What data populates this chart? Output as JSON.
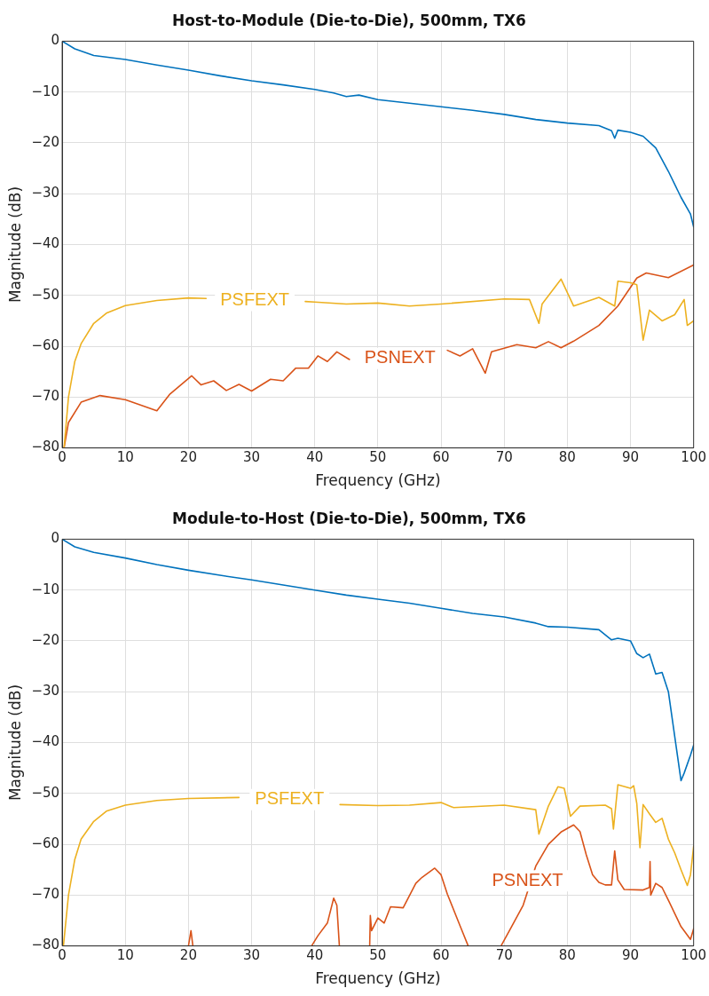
{
  "chart_data": [
    {
      "type": "line",
      "title": "Host-to-Module (Die-to-Die), 500mm, TX6",
      "xlabel": "Frequency (GHz)",
      "ylabel": "Magnitude (dB)",
      "xlim": [
        0,
        100
      ],
      "xticks": [
        0,
        10,
        20,
        30,
        40,
        50,
        60,
        70,
        80,
        90,
        100
      ],
      "ylim": [
        -80,
        0
      ],
      "yticks": [
        -80,
        -70,
        -60,
        -50,
        -40,
        -30,
        -20,
        -10,
        0
      ],
      "grid": true,
      "legend": false,
      "marker": "none",
      "line_style": "solid",
      "series": [
        {
          "color": "#0072bd",
          "x": [
            0,
            2,
            5,
            10,
            15,
            20,
            25,
            30,
            35,
            40,
            43,
            45,
            47,
            50,
            55,
            60,
            65,
            70,
            75,
            80,
            85,
            87,
            87.5,
            88,
            90,
            92,
            94,
            96,
            98,
            99.5,
            100
          ],
          "values": [
            0,
            -1.5,
            -2.8,
            -3.6,
            -4.7,
            -5.7,
            -6.8,
            -7.8,
            -8.6,
            -9.5,
            -10.2,
            -10.9,
            -10.6,
            -11.5,
            -12.2,
            -12.9,
            -13.6,
            -14.4,
            -15.4,
            -16.1,
            -16.6,
            -17.6,
            -19.1,
            -17.5,
            -17.9,
            -18.7,
            -21,
            -25.6,
            -30.7,
            -34,
            -36.5
          ]
        },
        {
          "name": "PSFEXT",
          "color": "#edb120",
          "x": [
            0.3,
            1,
            2,
            3,
            5,
            7,
            10,
            15,
            20,
            22.8,
            23,
            38.5,
            40,
            45,
            50,
            55,
            60,
            70,
            74,
            75.5,
            76,
            79,
            81,
            85,
            87.5,
            88,
            90,
            91,
            92,
            93,
            95,
            97,
            98.5,
            99,
            100
          ],
          "values": [
            -80,
            -70,
            -63,
            -59.5,
            -55.5,
            -53.5,
            -52,
            -51,
            -50.5,
            -50.6,
            null,
            -51.2,
            -51.3,
            -51.7,
            -51.5,
            -52.1,
            -51.7,
            -50.7,
            -50.8,
            -55.5,
            -51.7,
            -46.8,
            -52.1,
            -50.4,
            -52.1,
            -47.2,
            -47.5,
            -47.9,
            -58.8,
            -52.9,
            -55,
            -53.8,
            -50.8,
            -55.9,
            -55
          ]
        },
        {
          "name": "PSNEXT",
          "color": "#d95319",
          "x": [
            0.3,
            1,
            3,
            6,
            10,
            15,
            17,
            20.5,
            22,
            24,
            26,
            28,
            30,
            33,
            35,
            37,
            39,
            40.5,
            42,
            43.5,
            45.5,
            46,
            61,
            63,
            65,
            67,
            68,
            72,
            75,
            77,
            79,
            81,
            85,
            88,
            91,
            92.5,
            96,
            100
          ],
          "values": [
            -80,
            -75,
            -71,
            -69.7,
            -70.5,
            -72.7,
            -69.5,
            -65.8,
            -67.6,
            -66.8,
            -68.7,
            -67.5,
            -68.8,
            -66.5,
            -66.8,
            -64.3,
            -64.3,
            -61.9,
            -63,
            -61.1,
            -62.6,
            null,
            -60.8,
            -61.9,
            -60.5,
            -65.3,
            -61.1,
            -59.7,
            -60.3,
            -59.1,
            -60.3,
            -59,
            -55.9,
            -52.1,
            -46.6,
            -45.6,
            -46.5,
            -44
          ]
        }
      ]
    },
    {
      "type": "line",
      "title": "Module-to-Host (Die-to-Die), 500mm, TX6",
      "xlabel": "Frequency (GHz)",
      "ylabel": "Magnitude (dB)",
      "xlim": [
        0,
        100
      ],
      "xticks": [
        0,
        10,
        20,
        30,
        40,
        50,
        60,
        70,
        80,
        90,
        100
      ],
      "ylim": [
        -80,
        0
      ],
      "yticks": [
        -80,
        -70,
        -60,
        -50,
        -40,
        -30,
        -20,
        -10,
        0
      ],
      "grid": true,
      "legend": false,
      "marker": "none",
      "line_style": "solid",
      "series": [
        {
          "color": "#0072bd",
          "x": [
            0,
            2,
            5,
            10,
            15,
            20,
            25,
            30,
            35,
            40,
            45,
            50,
            55,
            60,
            65,
            70,
            75,
            77,
            80,
            85,
            87,
            88,
            90,
            91,
            92,
            93,
            94,
            95,
            96,
            98,
            98.5,
            99.5,
            100
          ],
          "values": [
            0,
            -1.5,
            -2.6,
            -3.7,
            -5,
            -6.1,
            -7.1,
            -8,
            -9,
            -10,
            -11,
            -11.8,
            -12.6,
            -13.6,
            -14.6,
            -15.3,
            -16.5,
            -17.2,
            -17.3,
            -17.8,
            -19.8,
            -19.5,
            -20,
            -22.5,
            -23.3,
            -22.6,
            -26.5,
            -26.2,
            -30,
            -47.5,
            -46,
            -42.5,
            -40.5
          ]
        },
        {
          "name": "PSFEXT",
          "color": "#edb120",
          "x": [
            0.2,
            1,
            2,
            3,
            5,
            7,
            10,
            15,
            20,
            28,
            28.5,
            44,
            50,
            55,
            60,
            62,
            70,
            75,
            75.5,
            77,
            78.5,
            79.5,
            80.5,
            82,
            86,
            87,
            87.3,
            88,
            90,
            90.5,
            91,
            91.5,
            92,
            93,
            94,
            95,
            96,
            97,
            98,
            99,
            99.5,
            100
          ],
          "values": [
            -80,
            -70,
            -63,
            -59,
            -55.5,
            -53.5,
            -52.3,
            -51.4,
            -51,
            -50.8,
            null,
            -52.2,
            -52.4,
            -52.3,
            -51.8,
            -52.8,
            -52.3,
            -53.2,
            -58,
            -52.5,
            -48.7,
            -49,
            -54.5,
            -52.5,
            -52.3,
            -53,
            -57,
            -48.3,
            -49,
            -48.5,
            -52,
            -60.7,
            -52.2,
            -54,
            -55.7,
            -54.9,
            -59,
            -61.7,
            -65,
            -68.1,
            -66,
            -60.4
          ]
        },
        {
          "name": "PSNEXT",
          "color": "#d95319",
          "x": [
            20,
            20.4,
            20.7,
            21,
            39.5,
            40.5,
            42,
            43,
            43.5,
            43.9,
            45,
            48.7,
            48.8,
            49,
            50,
            51,
            52,
            54,
            56,
            57,
            59,
            60,
            61,
            63,
            64.3,
            66,
            69.5,
            71,
            73,
            75,
            77,
            79,
            81,
            82,
            83,
            84,
            85,
            86,
            87,
            87.5,
            88,
            89,
            92,
            93,
            93.1,
            93.2,
            94,
            95,
            96,
            98,
            99.5,
            100
          ],
          "values": [
            -80,
            -77,
            -80,
            null,
            -80,
            -78,
            -75.5,
            -70.6,
            -72,
            -80,
            null,
            -80,
            -74,
            -77,
            -74.5,
            -75.5,
            -72.3,
            -72.5,
            -67.7,
            -66.5,
            -64.7,
            -66,
            -69.8,
            -76,
            -80,
            null,
            -80,
            -76.6,
            -72,
            -64.3,
            -60,
            -57.6,
            -56.2,
            -57.5,
            -62.1,
            -66,
            -67.5,
            -68,
            -68,
            -61.3,
            -67,
            -68.9,
            -69,
            -68.5,
            -63.4,
            -70,
            -67.7,
            -68.5,
            -71,
            -76.2,
            -78.7,
            -76.6
          ]
        }
      ]
    }
  ]
}
